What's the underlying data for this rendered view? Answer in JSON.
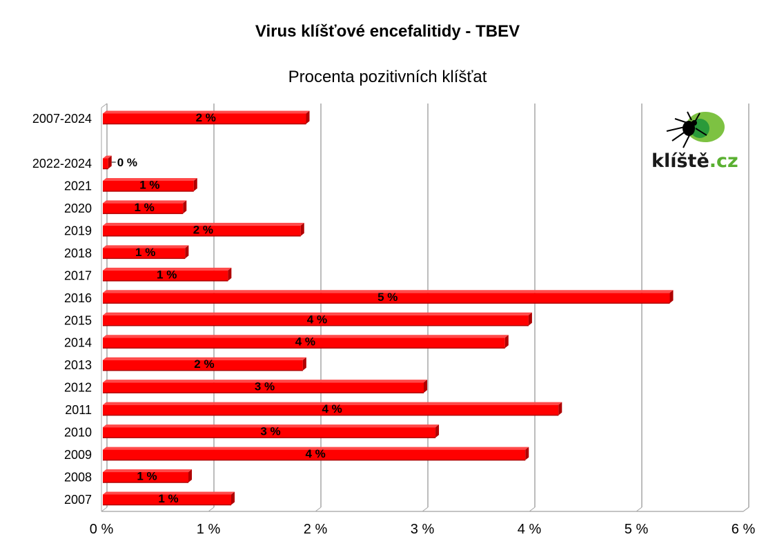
{
  "chart_data": {
    "type": "bar",
    "orientation": "horizontal",
    "title": "Virus klíšťové encefalitidy - TBEV",
    "subtitle": "Procenta pozitivních klíšťat",
    "categories": [
      "2007-2024",
      "2022-2024",
      "2021",
      "2020",
      "2019",
      "2018",
      "2017",
      "2016",
      "2015",
      "2014",
      "2013",
      "2012",
      "2011",
      "2010",
      "2009",
      "2008",
      "2007"
    ],
    "values": [
      1.9,
      0.05,
      0.85,
      0.75,
      1.85,
      0.77,
      1.17,
      5.3,
      3.98,
      3.76,
      1.87,
      3.0,
      4.26,
      3.11,
      3.95,
      0.8,
      1.2
    ],
    "data_labels": [
      "2 %",
      "0 %",
      "1 %",
      "1 %",
      "2 %",
      "1 %",
      "1 %",
      "5 %",
      "4 %",
      "4 %",
      "2 %",
      "3 %",
      "4 %",
      "3 %",
      "4 %",
      "1 %",
      "1 %"
    ],
    "xlim": [
      0,
      6
    ],
    "x_ticks": [
      0,
      1,
      2,
      3,
      4,
      5,
      6
    ],
    "x_tick_labels": [
      "0 %",
      "1 %",
      "2 %",
      "3 %",
      "4 %",
      "5 %",
      "6 %"
    ],
    "xlabel": "",
    "ylabel": "",
    "grid": "vertical",
    "bar_color": "#ff0000",
    "bar_shade_color": "#b00000",
    "grid_color": "#a6a6a6"
  },
  "logo": {
    "name": "klíště.cz logo",
    "icon": "tick-icon",
    "text_main": "klíště",
    "text_domain": ".cz",
    "accent_color": "#5ab031"
  }
}
